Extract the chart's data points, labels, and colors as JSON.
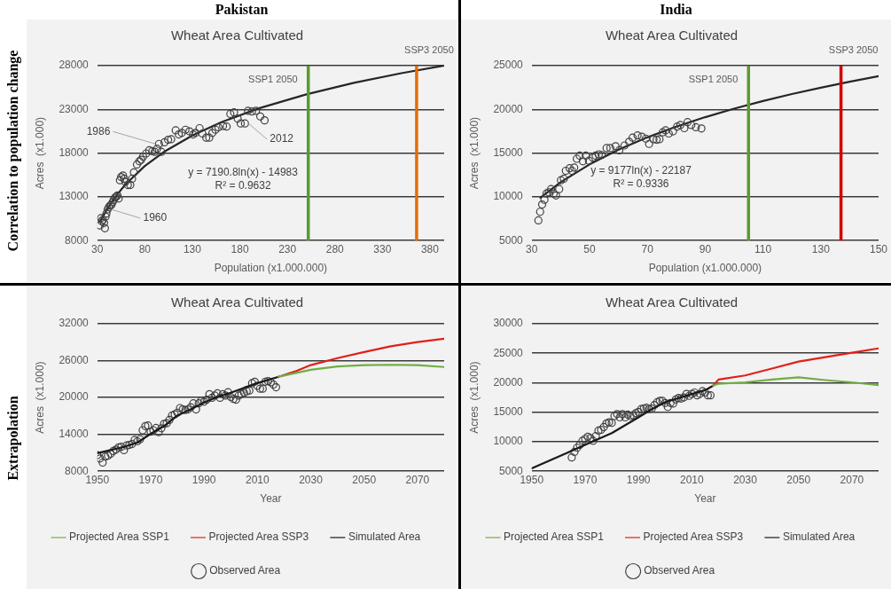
{
  "chart_data": [
    {
      "type": "other",
      "annotations": [
        "Pakistan",
        "India",
        "Correlation to population change",
        "Extrapolation"
      ]
    },
    {
      "type": "scatter",
      "title": "Wheat Area Cultivated",
      "xlabel": "Population (x1.000.000)",
      "ylabel": "Acres  (x1.000)",
      "xlim": [
        30,
        395
      ],
      "xticks": [
        30,
        80,
        130,
        180,
        230,
        280,
        330,
        380
      ],
      "ylim": [
        8000,
        28000
      ],
      "yticks": [
        8000,
        13000,
        18000,
        23000,
        28000
      ],
      "grid": "y",
      "legend": false,
      "marker": "circle",
      "series": [
        {
          "type": "scatter",
          "color": "#404040",
          "x": [
            32.6,
            33.9,
            34.8,
            35.8,
            37.1,
            38.0,
            38.7,
            39.6,
            40.9,
            42.2,
            43.5,
            44.8,
            46.1,
            47.3,
            48.6,
            49.9,
            51.2,
            52.5,
            53.8,
            55.0,
            57.0,
            58.3,
            59.5,
            62.1,
            64.7,
            66.6,
            68.5,
            71.7,
            74.3,
            76.2,
            78.2,
            81.4,
            84.6,
            87.8,
            90.4,
            92.9,
            94.9,
            97.4,
            100.6,
            104.5,
            107.7,
            112.5,
            115.7,
            118.9,
            122.8,
            127.0,
            130.8,
            133.4,
            137.6,
            140.5,
            144.6,
            147.8,
            151.1,
            154.3,
            157.5,
            162.3,
            166.1,
            170.0,
            173.9,
            177.7,
            180.9,
            185.4,
            188.6,
            192.8,
            197.0,
            201.5,
            206.0
          ],
          "values": [
            9730,
            10560,
            10200,
            10380,
            10020,
            9410,
            10740,
            11100,
            11570,
            11830,
            12010,
            12080,
            12370,
            12660,
            12910,
            13020,
            13160,
            12800,
            14900,
            15260,
            15440,
            15080,
            14710,
            14350,
            14350,
            15080,
            15800,
            16700,
            17060,
            17240,
            17600,
            17960,
            18320,
            18220,
            18140,
            18500,
            19050,
            18140,
            19230,
            19520,
            19590,
            20600,
            20130,
            20310,
            20670,
            20490,
            20130,
            20310,
            20850,
            20240,
            19770,
            19770,
            20310,
            20670,
            20960,
            21100,
            21030,
            22480,
            22660,
            21930,
            21390,
            21390,
            22840,
            22760,
            22840,
            22190,
            21750
          ]
        },
        {
          "type": "line",
          "marker": "none",
          "color": "#262626",
          "x": [
            33,
            40,
            50,
            60,
            80,
            100,
            130,
            160,
            200,
            250,
            300,
            350,
            394
          ],
          "values": [
            10160,
            11540,
            13150,
            14460,
            16530,
            18130,
            20020,
            21510,
            23120,
            24720,
            26030,
            27140,
            27990
          ]
        }
      ],
      "ref_lines": [
        {
          "axis": "x",
          "value": 252,
          "label": "SSP1 2050",
          "color": "#5a9a2f"
        },
        {
          "axis": "x",
          "value": 366,
          "label": "SSP3 2050",
          "color": "#e46c0a"
        }
      ],
      "annotations": [
        {
          "text": "1986",
          "x": 94.9,
          "y": 19050
        },
        {
          "text": "2012",
          "x": 185.4,
          "y": 21390
        },
        {
          "text": "1960",
          "x": 40.9,
          "y": 11570
        },
        "y = 7190.8ln(x) - 14983",
        "R² = 0.9632"
      ]
    },
    {
      "type": "scatter",
      "title": "Wheat Area Cultivated",
      "xlabel": "Population (x1.000.000)",
      "ylabel": "Acres  (x1.000)",
      "xlim": [
        30,
        150
      ],
      "xticks": [
        30,
        50,
        70,
        90,
        110,
        130,
        150
      ],
      "ylim": [
        5000,
        25000
      ],
      "yticks": [
        5000,
        10000,
        15000,
        20000,
        25000
      ],
      "grid": "y",
      "legend": false,
      "marker": "circle",
      "series": [
        {
          "type": "scatter",
          "color": "#404040",
          "x": [
            32.3,
            32.9,
            33.6,
            34.4,
            35.1,
            35.9,
            36.7,
            37.6,
            38.4,
            39.5,
            40.1,
            41.1,
            41.8,
            43.1,
            43.9,
            44.7,
            45.6,
            46.6,
            47.7,
            48.7,
            49.8,
            51.1,
            52.1,
            53.2,
            54.2,
            55.9,
            57.2,
            59.0,
            60.3,
            62.1,
            63.7,
            64.9,
            66.6,
            68.1,
            69.5,
            70.6,
            72.1,
            73.2,
            74.2,
            75.3,
            76.3,
            77.4,
            78.9,
            80.3,
            81.4,
            82.8,
            83.9,
            85.2,
            86.8,
            88.7
          ],
          "values": [
            7310,
            8290,
            9120,
            9660,
            10380,
            10520,
            10880,
            10380,
            10160,
            10880,
            11900,
            12080,
            12980,
            13270,
            12980,
            13340,
            14350,
            14710,
            14060,
            14710,
            14130,
            14490,
            14710,
            14860,
            14780,
            15580,
            15580,
            15790,
            15320,
            15870,
            16300,
            16770,
            17020,
            16880,
            16660,
            16050,
            16590,
            16520,
            16590,
            17380,
            17600,
            17240,
            17490,
            18030,
            18210,
            17850,
            18540,
            18210,
            17960,
            17820
          ]
        },
        {
          "type": "line",
          "marker": "none",
          "color": "#262626",
          "x": [
            33,
            40,
            50,
            60,
            70,
            80,
            90,
            100,
            110,
            120,
            130,
            140,
            150
          ],
          "values": [
            9900,
            11670,
            13710,
            15390,
            16800,
            18030,
            19110,
            20080,
            20950,
            21750,
            22480,
            23160,
            23800
          ]
        }
      ],
      "ref_lines": [
        {
          "axis": "x",
          "value": 105,
          "label": "SSP1 2050",
          "color": "#5a9a2f"
        },
        {
          "axis": "x",
          "value": 137,
          "label": "SSP3 2050",
          "color": "#d00000"
        }
      ],
      "annotations": [
        "y = 9177ln(x) - 22187",
        "R² = 0.9336"
      ]
    },
    {
      "type": "line",
      "title": "Wheat Area Cultivated",
      "xlabel": "Year",
      "ylabel": "Acres  (x1.000)",
      "xlim": [
        1950,
        2080
      ],
      "xticks": [
        1950,
        1970,
        1990,
        2010,
        2030,
        2050,
        2070
      ],
      "ylim": [
        8000,
        32000
      ],
      "yticks": [
        8000,
        14000,
        20000,
        26000,
        32000
      ],
      "grid": "y",
      "legend": "bottom",
      "marker": "none",
      "series": [
        {
          "name": "Projected Area SSP1",
          "color": "#70ad47",
          "x": [
            2018,
            2030,
            2040,
            2050,
            2060,
            2070,
            2080
          ],
          "values": [
            23380,
            24510,
            25050,
            25270,
            25320,
            25270,
            24960
          ]
        },
        {
          "name": "Projected Area SSP3",
          "color": "#e0201b",
          "x": [
            2018,
            2025,
            2030,
            2040,
            2050,
            2060,
            2070,
            2080
          ],
          "values": [
            23380,
            24370,
            25270,
            26400,
            27390,
            28340,
            29020,
            29560
          ]
        },
        {
          "name": "Simulated Area",
          "color": "#1a1a1a",
          "x": [
            1950,
            1960,
            1965,
            1970,
            1975,
            1980,
            1985,
            1990,
            1995,
            2000,
            2005,
            2010,
            2018
          ],
          "values": [
            10930,
            11970,
            12650,
            14090,
            15350,
            17070,
            18060,
            19190,
            20090,
            20760,
            21580,
            22340,
            23380
          ]
        },
        {
          "name": "Observed Area",
          "type": "scatter",
          "marker": "circle",
          "color": "#404040",
          "x": [
            1950,
            1951,
            1952,
            1953,
            1954,
            1955,
            1956,
            1957,
            1958,
            1959,
            1960,
            1961,
            1962,
            1963,
            1964,
            1965,
            1966,
            1967,
            1968,
            1969,
            1970,
            1971,
            1972,
            1973,
            1974,
            1975,
            1976,
            1977,
            1978,
            1979,
            1980,
            1981,
            1982,
            1983,
            1984,
            1985,
            1986,
            1987,
            1988,
            1989,
            1990,
            1991,
            1992,
            1993,
            1994,
            1995,
            1996,
            1997,
            1998,
            1999,
            2000,
            2001,
            2002,
            2003,
            2004,
            2005,
            2006,
            2007,
            2008,
            2009,
            2010,
            2011,
            2012,
            2013,
            2014,
            2015,
            2016,
            2017
          ],
          "values": [
            10620,
            10070,
            9400,
            10390,
            10530,
            10840,
            11290,
            11520,
            11880,
            11970,
            11430,
            12190,
            12280,
            12420,
            13100,
            12870,
            13190,
            14670,
            15350,
            15440,
            14450,
            14670,
            15040,
            14360,
            14990,
            15710,
            15800,
            16340,
            17070,
            17250,
            17520,
            18280,
            18060,
            17970,
            18060,
            18420,
            19050,
            18060,
            19050,
            19500,
            19320,
            19640,
            20540,
            19950,
            20310,
            20670,
            19950,
            20540,
            20310,
            20850,
            20090,
            19770,
            19640,
            20310,
            20540,
            20760,
            20990,
            21120,
            22340,
            22570,
            21890,
            21440,
            21440,
            22570,
            22660,
            22480,
            22120,
            21670
          ]
        }
      ]
    },
    {
      "type": "line",
      "title": "Wheat Area Cultivated",
      "xlabel": "Year",
      "ylabel": "Acres  (x1.000)",
      "xlim": [
        1950,
        2080
      ],
      "xticks": [
        1950,
        1970,
        1990,
        2010,
        2030,
        2050,
        2070
      ],
      "ylim": [
        5000,
        30000
      ],
      "yticks": [
        5000,
        10000,
        15000,
        20000,
        25000,
        30000
      ],
      "grid": "y",
      "legend": "bottom",
      "marker": "none",
      "series": [
        {
          "name": "Projected Area SSP1",
          "color": "#70ad47",
          "x": [
            2018,
            2020,
            2030,
            2040,
            2050,
            2060,
            2070,
            2080
          ],
          "values": [
            19510,
            19840,
            20070,
            20540,
            20910,
            20450,
            20070,
            19600
          ]
        },
        {
          "name": "Projected Area SSP3",
          "color": "#e0201b",
          "x": [
            2018,
            2020,
            2030,
            2040,
            2050,
            2060,
            2070,
            2080
          ],
          "values": [
            19510,
            20540,
            21240,
            22410,
            23580,
            24330,
            25080,
            25830
          ]
        },
        {
          "name": "Simulated Area",
          "color": "#1a1a1a",
          "x": [
            1950,
            1970,
            1980,
            1990,
            1995,
            2000,
            2010,
            2015,
            2018
          ],
          "values": [
            5470,
            9450,
            11460,
            14130,
            15530,
            16700,
            18100,
            18710,
            19510
          ]
        },
        {
          "name": "Observed Area",
          "type": "scatter",
          "marker": "circle",
          "color": "#404040",
          "x": [
            1965,
            1966,
            1967,
            1968,
            1969,
            1970,
            1971,
            1972,
            1973,
            1974,
            1975,
            1976,
            1977,
            1978,
            1979,
            1980,
            1981,
            1982,
            1983,
            1984,
            1985,
            1986,
            1987,
            1988,
            1989,
            1990,
            1991,
            1992,
            1993,
            1994,
            1995,
            1996,
            1997,
            1998,
            1999,
            2000,
            2001,
            2002,
            2003,
            2004,
            2005,
            2006,
            2007,
            2008,
            2009,
            2010,
            2011,
            2012,
            2013,
            2014,
            2015,
            2016,
            2017
          ],
          "values": [
            7340,
            8280,
            8980,
            9450,
            10150,
            10480,
            10850,
            10620,
            10150,
            10950,
            11880,
            12020,
            12490,
            13100,
            13290,
            13190,
            14360,
            14690,
            14130,
            14690,
            14130,
            14590,
            14360,
            14500,
            14830,
            15060,
            15530,
            15620,
            15760,
            15530,
            15620,
            16230,
            16700,
            16930,
            16930,
            16560,
            15900,
            16560,
            16470,
            17170,
            17410,
            17310,
            17500,
            18110,
            17780,
            18110,
            18340,
            17870,
            18110,
            18580,
            18340,
            17870,
            17870
          ]
        }
      ]
    }
  ]
}
